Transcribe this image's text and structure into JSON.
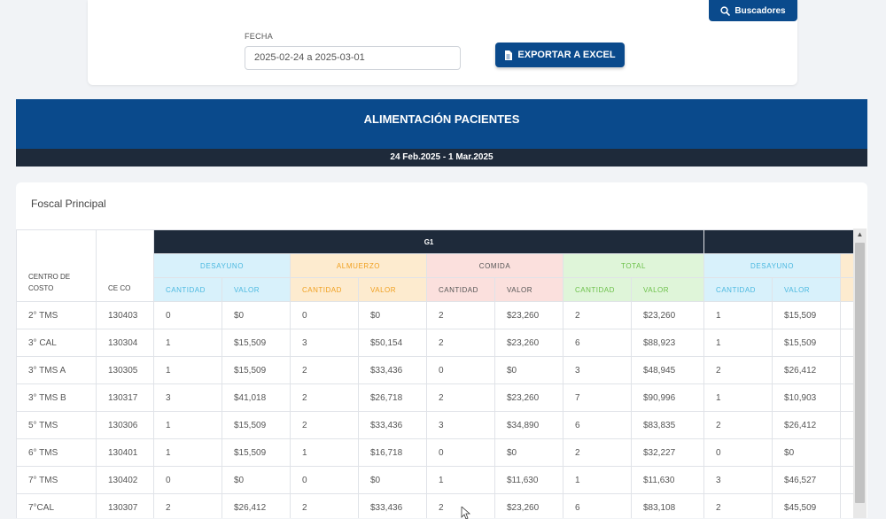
{
  "filters": {
    "date_label": "FECHA",
    "date_value": "2025-02-24 a 2025-03-01",
    "export_label": "EXPORTAR A EXCEL",
    "search_label": "Buscadores"
  },
  "report": {
    "title": "ALIMENTACIÓN PACIENTES",
    "period": "24 Feb.2025 - 1 Mar.2025",
    "location": "Foscal Principal"
  },
  "table": {
    "group_label": "G1",
    "col_center": "CENTRO DE COSTO",
    "col_ceco": "CE CO",
    "sections": [
      "DESAYUNO",
      "ALMUERZO",
      "COMIDA",
      "TOTAL",
      "DESAYUNO"
    ],
    "sub_cantidad": "CANTIDAD",
    "sub_valor": "VALOR",
    "rows": [
      [
        "2° TMS",
        "130403",
        "0",
        "$0",
        "0",
        "$0",
        "2",
        "$23,260",
        "2",
        "$23,260",
        "1",
        "$15,509"
      ],
      [
        "3° CAL",
        "130304",
        "1",
        "$15,509",
        "3",
        "$50,154",
        "2",
        "$23,260",
        "6",
        "$88,923",
        "1",
        "$15,509"
      ],
      [
        "3° TMS A",
        "130305",
        "1",
        "$15,509",
        "2",
        "$33,436",
        "0",
        "$0",
        "3",
        "$48,945",
        "2",
        "$26,412"
      ],
      [
        "3° TMS B",
        "130317",
        "3",
        "$41,018",
        "2",
        "$26,718",
        "2",
        "$23,260",
        "7",
        "$90,996",
        "1",
        "$10,903"
      ],
      [
        "5° TMS",
        "130306",
        "1",
        "$15,509",
        "2",
        "$33,436",
        "3",
        "$34,890",
        "6",
        "$83,835",
        "2",
        "$26,412"
      ],
      [
        "6° TMS",
        "130401",
        "1",
        "$15,509",
        "1",
        "$16,718",
        "0",
        "$0",
        "2",
        "$32,227",
        "0",
        "$0"
      ],
      [
        "7° TMS",
        "130402",
        "0",
        "$0",
        "0",
        "$0",
        "1",
        "$11,630",
        "1",
        "$11,630",
        "3",
        "$46,527"
      ],
      [
        "7°CAL",
        "130307",
        "2",
        "$26,412",
        "2",
        "$33,436",
        "2",
        "$23,260",
        "6",
        "$83,108",
        "2",
        "$45,509"
      ]
    ]
  },
  "icons": {
    "search": "search-icon",
    "file": "file-icon"
  }
}
